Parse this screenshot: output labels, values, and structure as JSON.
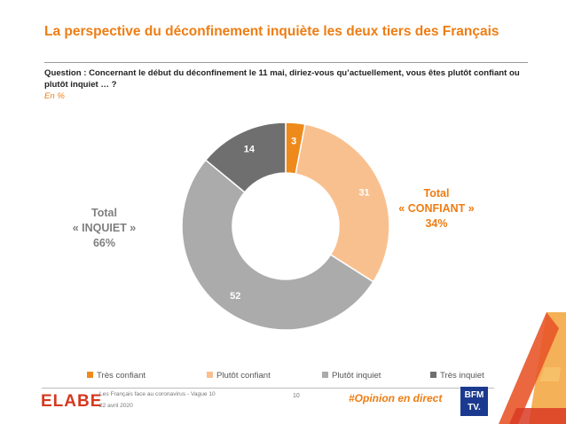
{
  "header": {
    "title": "La perspective du déconfinement inquiète les deux tiers des Français",
    "question": "Question : Concernant le début du déconfinement le 11 mai, diriez-vous qu’actuellement, vous êtes plutôt confiant ou plutôt inquiet … ?",
    "unit": "En %"
  },
  "chart_data": {
    "type": "pie",
    "title": "",
    "categories": [
      "Très confiant",
      "Plutôt confiant",
      "Plutôt inquiet",
      "Très inquiet"
    ],
    "values": [
      3,
      31,
      52,
      14
    ],
    "colors": [
      "#ee8a1c",
      "#f9c08f",
      "#ababab",
      "#6f6f6f"
    ],
    "donut": true,
    "legend_position": "bottom",
    "labels": {
      "inquiet_line1": "Total",
      "inquiet_line2": "« INQUIET »",
      "inquiet_line3": "66%",
      "confiant_line1": "Total",
      "confiant_line2": "« CONFIANT »",
      "confiant_line3": "34%"
    }
  },
  "footer": {
    "logo_text": "ELABE",
    "line1": "Les Français face au coronavirus - Vague 10",
    "line2": "22 avril 2020",
    "page": "10",
    "hashtag": "#Opinion en direct",
    "partner_top": "BFM",
    "partner_bottom": "TV."
  }
}
